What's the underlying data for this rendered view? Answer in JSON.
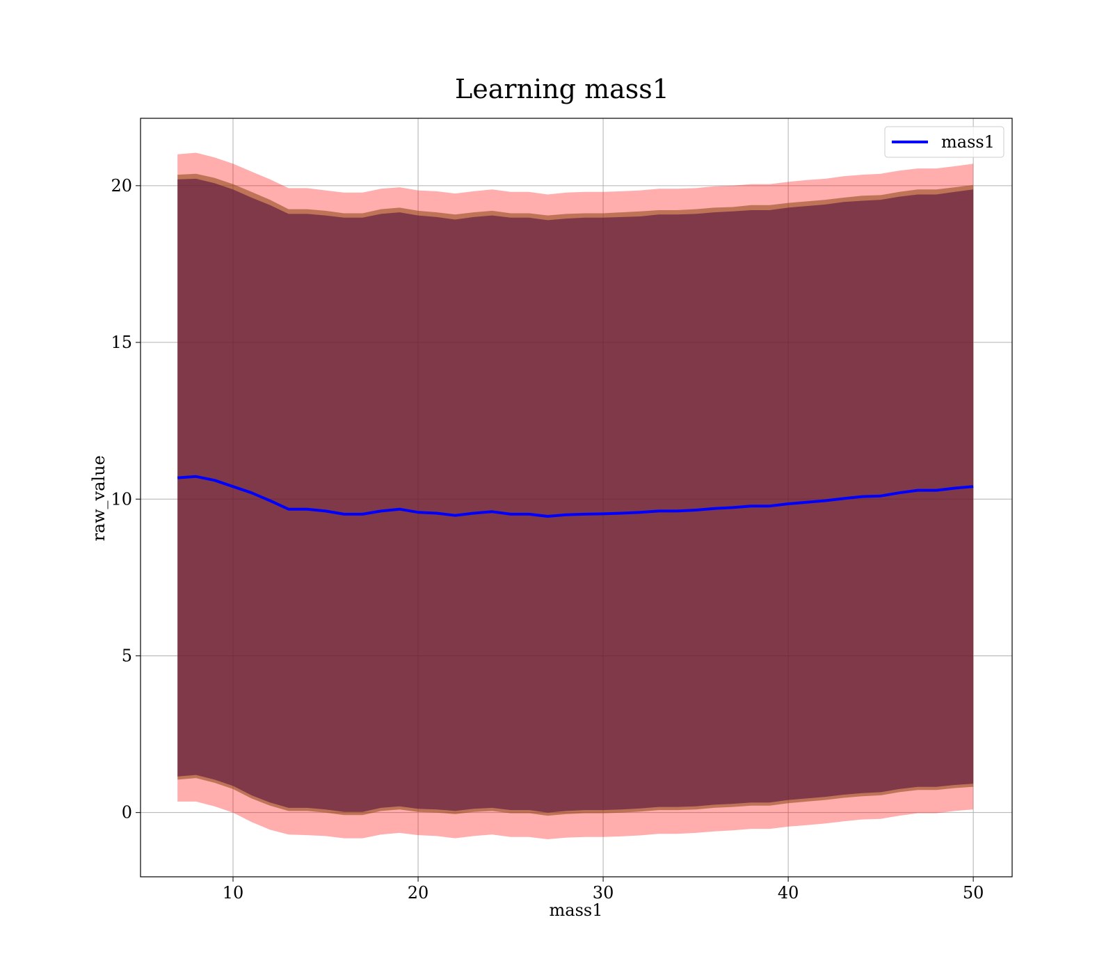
{
  "chart_data": {
    "type": "area",
    "title": "Learning mass1",
    "xlabel": "mass1",
    "ylabel": "raw_value",
    "xlim": [
      5,
      52.1
    ],
    "ylim": [
      -2.05,
      22.15
    ],
    "xticks": [
      10,
      20,
      30,
      40,
      50
    ],
    "yticks": [
      0,
      5,
      10,
      15,
      20
    ],
    "grid": true,
    "legend_position": "upper-right",
    "colors": {
      "line": "#0000ff",
      "outer_band": "#ff0000",
      "inner_band": "#8b4513",
      "core_band": "#4b0a3c",
      "grid": "#b0b0b0"
    },
    "x": [
      7,
      8,
      9,
      10,
      11,
      12,
      13,
      14,
      15,
      16,
      17,
      18,
      19,
      20,
      21,
      22,
      23,
      24,
      25,
      26,
      27,
      28,
      29,
      30,
      31,
      32,
      33,
      34,
      35,
      36,
      37,
      38,
      39,
      40,
      41,
      42,
      43,
      44,
      45,
      46,
      47,
      48,
      49,
      50
    ],
    "series": [
      {
        "name": "mass1",
        "role": "line",
        "values": [
          10.68,
          10.72,
          10.6,
          10.4,
          10.2,
          9.95,
          9.68,
          9.68,
          9.62,
          9.52,
          9.52,
          9.62,
          9.68,
          9.58,
          9.55,
          9.48,
          9.55,
          9.6,
          9.52,
          9.52,
          9.45,
          9.5,
          9.52,
          9.53,
          9.55,
          9.58,
          9.62,
          9.62,
          9.65,
          9.7,
          9.73,
          9.78,
          9.78,
          9.85,
          9.9,
          9.95,
          10.02,
          10.08,
          10.1,
          10.2,
          10.28,
          10.28,
          10.35,
          10.4
        ]
      },
      {
        "name": "",
        "role": "band",
        "layer": "outer",
        "lower": [
          0.35,
          0.35,
          0.2,
          0.0,
          -0.3,
          -0.55,
          -0.7,
          -0.72,
          -0.75,
          -0.82,
          -0.82,
          -0.7,
          -0.65,
          -0.72,
          -0.75,
          -0.82,
          -0.75,
          -0.7,
          -0.78,
          -0.78,
          -0.85,
          -0.8,
          -0.78,
          -0.78,
          -0.76,
          -0.73,
          -0.68,
          -0.68,
          -0.65,
          -0.6,
          -0.57,
          -0.52,
          -0.52,
          -0.45,
          -0.4,
          -0.35,
          -0.28,
          -0.22,
          -0.2,
          -0.1,
          -0.02,
          -0.02,
          0.05,
          0.1
        ],
        "upper": [
          21.0,
          21.05,
          20.9,
          20.7,
          20.45,
          20.2,
          19.92,
          19.92,
          19.85,
          19.78,
          19.78,
          19.9,
          19.95,
          19.85,
          19.82,
          19.75,
          19.82,
          19.88,
          19.8,
          19.8,
          19.72,
          19.78,
          19.8,
          19.8,
          19.82,
          19.85,
          19.9,
          19.9,
          19.92,
          19.98,
          20.0,
          20.05,
          20.05,
          20.12,
          20.18,
          20.22,
          20.3,
          20.35,
          20.38,
          20.48,
          20.55,
          20.55,
          20.62,
          20.7
        ]
      },
      {
        "name": "",
        "role": "band",
        "layer": "inner",
        "lower": [
          1.05,
          1.1,
          0.95,
          0.75,
          0.45,
          0.22,
          0.05,
          0.05,
          0.0,
          -0.08,
          -0.08,
          0.05,
          0.1,
          0.02,
          0.0,
          -0.05,
          0.02,
          0.05,
          -0.02,
          -0.02,
          -0.1,
          -0.05,
          -0.02,
          -0.02,
          0.0,
          0.03,
          0.08,
          0.08,
          0.1,
          0.15,
          0.18,
          0.22,
          0.22,
          0.3,
          0.35,
          0.4,
          0.47,
          0.52,
          0.55,
          0.65,
          0.72,
          0.72,
          0.78,
          0.82
        ],
        "upper": [
          20.35,
          20.38,
          20.25,
          20.05,
          19.8,
          19.55,
          19.25,
          19.25,
          19.2,
          19.12,
          19.12,
          19.25,
          19.3,
          19.2,
          19.15,
          19.08,
          19.15,
          19.2,
          19.12,
          19.12,
          19.05,
          19.1,
          19.12,
          19.12,
          19.15,
          19.18,
          19.22,
          19.22,
          19.25,
          19.3,
          19.32,
          19.38,
          19.38,
          19.45,
          19.5,
          19.55,
          19.62,
          19.68,
          19.7,
          19.8,
          19.88,
          19.88,
          19.95,
          20.02
        ]
      },
      {
        "name": "",
        "role": "band",
        "layer": "core",
        "lower": [
          1.15,
          1.2,
          1.05,
          0.85,
          0.55,
          0.32,
          0.15,
          0.15,
          0.1,
          0.02,
          0.02,
          0.15,
          0.2,
          0.12,
          0.1,
          0.05,
          0.12,
          0.15,
          0.08,
          0.08,
          0.0,
          0.05,
          0.08,
          0.08,
          0.1,
          0.13,
          0.18,
          0.18,
          0.2,
          0.25,
          0.28,
          0.32,
          0.32,
          0.4,
          0.45,
          0.5,
          0.57,
          0.62,
          0.65,
          0.75,
          0.82,
          0.82,
          0.88,
          0.92
        ],
        "upper": [
          20.2,
          20.22,
          20.08,
          19.88,
          19.62,
          19.38,
          19.1,
          19.1,
          19.05,
          18.98,
          18.98,
          19.1,
          19.15,
          19.05,
          19.0,
          18.92,
          19.0,
          19.05,
          18.98,
          18.98,
          18.9,
          18.95,
          18.98,
          18.98,
          19.0,
          19.02,
          19.08,
          19.08,
          19.1,
          19.15,
          19.18,
          19.22,
          19.22,
          19.3,
          19.35,
          19.4,
          19.48,
          19.52,
          19.55,
          19.65,
          19.72,
          19.72,
          19.8,
          19.88
        ]
      }
    ],
    "legend": [
      {
        "label": "mass1",
        "color": "#0000ff"
      }
    ]
  }
}
